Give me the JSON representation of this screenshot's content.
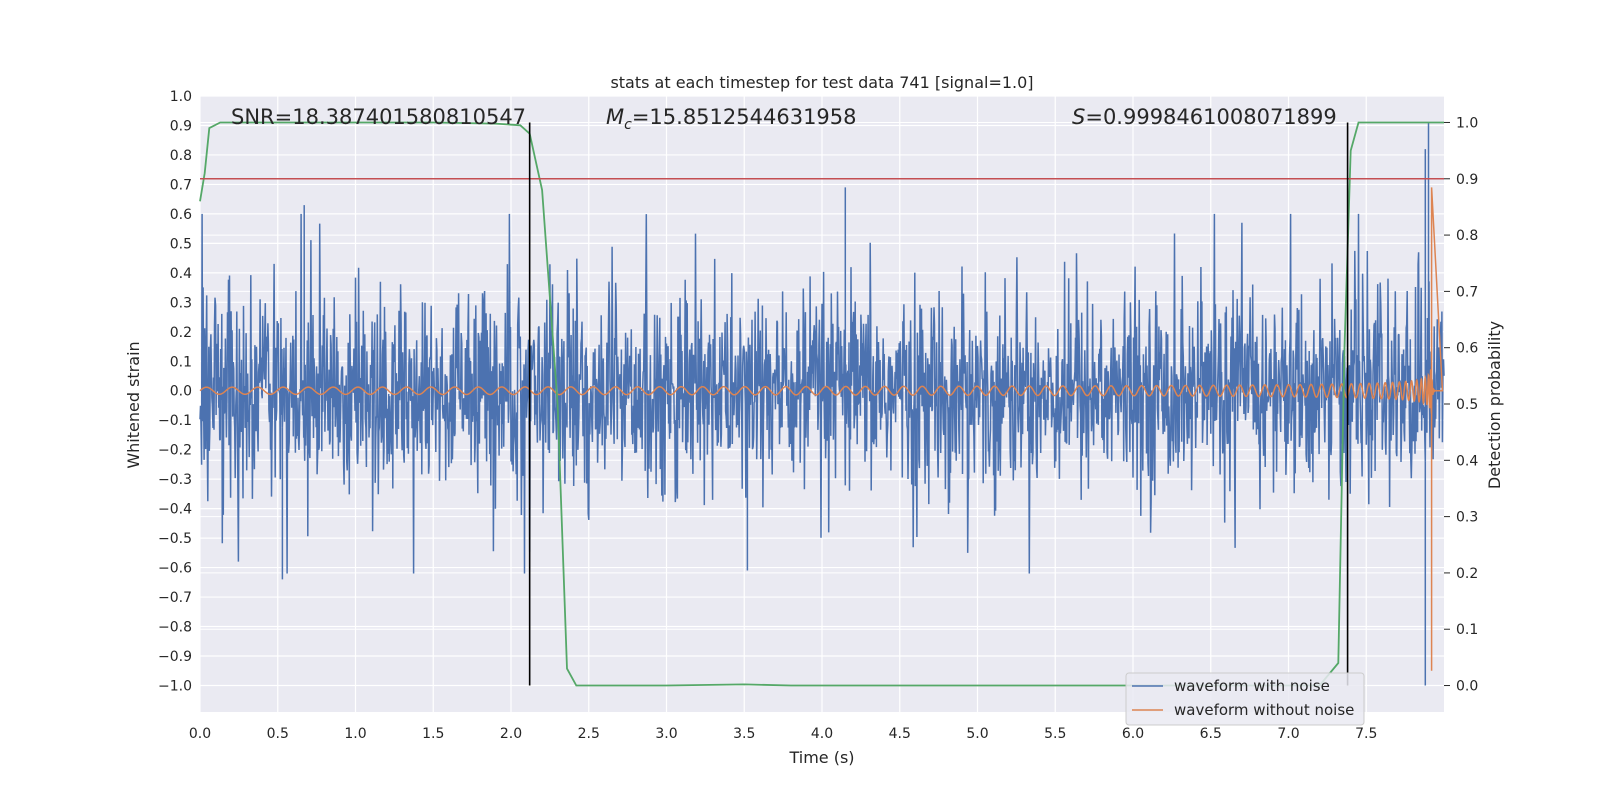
{
  "chart_data": {
    "type": "line",
    "title": "stats at each timestep for test data 741 [signal=1.0]",
    "xlabel": "Time (s)",
    "ylabel": "Whitened strain",
    "y2label": "Detection probability",
    "xlim": [
      0.0,
      8.0
    ],
    "ylim": [
      -1.09,
      1.0
    ],
    "y2lim": [
      -0.047,
      1.047
    ],
    "xticks": [
      "0.0",
      "0.5",
      "1.0",
      "1.5",
      "2.0",
      "2.5",
      "3.0",
      "3.5",
      "4.0",
      "4.5",
      "5.0",
      "5.5",
      "6.0",
      "6.5",
      "7.0",
      "7.5"
    ],
    "yticks": [
      "1.0",
      "0.9",
      "0.8",
      "0.7",
      "0.6",
      "0.5",
      "0.4",
      "0.3",
      "0.2",
      "0.1",
      "0.0",
      "−0.1",
      "−0.2",
      "−0.3",
      "−0.4",
      "−0.5",
      "−0.6",
      "−0.7",
      "−0.8",
      "−0.9",
      "−1.0"
    ],
    "y2ticks": [
      "1.0",
      "0.9",
      "0.8",
      "0.7",
      "0.6",
      "0.5",
      "0.4",
      "0.3",
      "0.2",
      "0.1",
      "0.0"
    ],
    "annotations": {
      "snr": "SNR=18.387401580810547",
      "mc_symbol": "M",
      "mc_sub": "c",
      "mc_value": "=15.8512544631958",
      "s_symbol": "S",
      "s_value": "=0.9998461008071899"
    },
    "threshold": {
      "axis": "y2",
      "value": 0.9,
      "color": "#c44e52"
    },
    "vlines": [
      2.12,
      7.38
    ],
    "series": [
      {
        "name": "waveform with noise",
        "color": "#4c72b0",
        "axis": "y",
        "description": "noisy whitened strain, amplitude mostly within ±0.5",
        "peaks": [
          [
            0.67,
            0.63
          ],
          [
            0.53,
            -0.64
          ],
          [
            4.15,
            0.69
          ],
          [
            7.88,
            0.82
          ],
          [
            7.9,
            0.91
          ],
          [
            7.88,
            -1.0
          ],
          [
            3.52,
            -0.61
          ]
        ]
      },
      {
        "name": "waveform without noise",
        "color": "#dd8452",
        "axis": "y",
        "description": "chirp signal, amplitude grows from ~0.01 to ~0.7 at merger near t=7.9s"
      },
      {
        "name": "detection probability",
        "color": "#55a868",
        "axis": "y2",
        "x": [
          0.0,
          0.03,
          0.06,
          0.13,
          0.5,
          1.0,
          1.5,
          1.9,
          2.06,
          2.12,
          2.2,
          2.3,
          2.36,
          2.42,
          3.0,
          3.5,
          3.8,
          4.5,
          5.5,
          6.5,
          7.2,
          7.32,
          7.36,
          7.4,
          7.45,
          7.55,
          8.0
        ],
        "values": [
          0.86,
          0.91,
          0.99,
          1.0,
          1.0,
          1.0,
          1.0,
          0.998,
          0.995,
          0.98,
          0.88,
          0.5,
          0.03,
          0.0,
          0.0,
          0.002,
          0.0,
          0.0,
          0.0,
          0.0,
          0.0,
          0.04,
          0.6,
          0.95,
          1.0,
          1.0,
          1.0
        ]
      }
    ],
    "legend": {
      "position": "lower-right",
      "entries": [
        "waveform with noise",
        "waveform without noise"
      ]
    }
  }
}
